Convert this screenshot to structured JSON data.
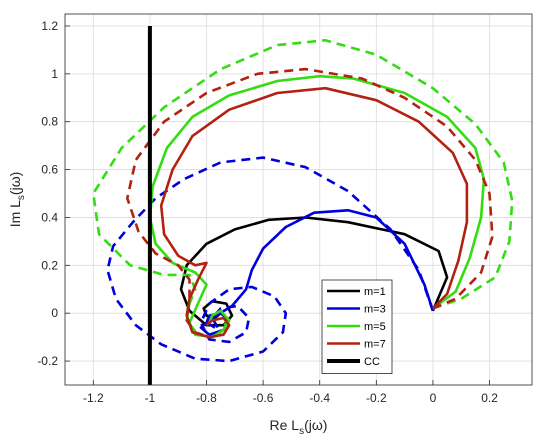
{
  "chart_data": {
    "type": "line",
    "xlabel": "Re L_s(jω)",
    "ylabel": "Im L_s(jω)",
    "xlabel_parts": {
      "prefix": "Re L",
      "sub": "s",
      "suffix": "(jω)"
    },
    "ylabel_parts": {
      "prefix": "Im L",
      "sub": "s",
      "suffix": "(jω)"
    },
    "xlim": [
      -1.3,
      0.35
    ],
    "ylim": [
      -0.3,
      1.25
    ],
    "xticks": [
      -1.2,
      -1,
      -0.8,
      -0.6,
      -0.4,
      -0.2,
      0,
      0.2
    ],
    "xtick_labels": [
      "-1.2",
      "-1",
      "-0.8",
      "-0.6",
      "-0.4",
      "-0.2",
      "0",
      "0.2"
    ],
    "yticks": [
      -0.2,
      0,
      0.2,
      0.4,
      0.6,
      0.8,
      1,
      1.2
    ],
    "ytick_labels": [
      "-0.2",
      "0",
      "0.2",
      "0.4",
      "0.6",
      "0.8",
      "1",
      "1.2"
    ],
    "grid": true,
    "legend_position": "bottom-right",
    "series": [
      {
        "name": "m=1",
        "color": "#000000",
        "solid": [
          [
            0,
            0.01
          ],
          [
            0.05,
            0.15
          ],
          [
            0.02,
            0.26
          ],
          [
            -0.1,
            0.33
          ],
          [
            -0.3,
            0.38
          ],
          [
            -0.45,
            0.4
          ],
          [
            -0.58,
            0.39
          ],
          [
            -0.7,
            0.35
          ],
          [
            -0.8,
            0.29
          ],
          [
            -0.87,
            0.2
          ],
          [
            -0.89,
            0.1
          ],
          [
            -0.86,
            0.01
          ],
          [
            -0.8,
            -0.05
          ],
          [
            -0.74,
            -0.05
          ],
          [
            -0.71,
            -0.01
          ],
          [
            -0.73,
            0.04
          ],
          [
            -0.78,
            0.05
          ],
          [
            -0.81,
            0.02
          ],
          [
            -0.8,
            -0.01
          ],
          [
            -0.77,
            -0.02
          ],
          [
            -0.75,
            0
          ]
        ],
        "dashed": []
      },
      {
        "name": "m=3",
        "color": "#0000dd",
        "solid": [
          [
            0,
            0.01
          ],
          [
            -0.03,
            0.12
          ],
          [
            -0.1,
            0.29
          ],
          [
            -0.2,
            0.4
          ],
          [
            -0.3,
            0.43
          ],
          [
            -0.42,
            0.42
          ],
          [
            -0.52,
            0.36
          ],
          [
            -0.6,
            0.27
          ],
          [
            -0.64,
            0.18
          ],
          [
            -0.66,
            0.1
          ],
          [
            -0.71,
            0.03
          ],
          [
            -0.78,
            -0.02
          ],
          [
            -0.82,
            -0.06
          ],
          [
            -0.79,
            -0.09
          ],
          [
            -0.74,
            -0.07
          ],
          [
            -0.72,
            -0.03
          ],
          [
            -0.75,
            0
          ],
          [
            -0.79,
            -0.01
          ],
          [
            -0.8,
            -0.04
          ],
          [
            -0.77,
            -0.06
          ]
        ],
        "dashed": [
          [
            0,
            0.01
          ],
          [
            -0.05,
            0.18
          ],
          [
            -0.15,
            0.35
          ],
          [
            -0.3,
            0.51
          ],
          [
            -0.45,
            0.61
          ],
          [
            -0.6,
            0.65
          ],
          [
            -0.75,
            0.63
          ],
          [
            -0.88,
            0.56
          ],
          [
            -0.98,
            0.48
          ],
          [
            -1.06,
            0.38
          ],
          [
            -1.13,
            0.28
          ],
          [
            -1.15,
            0.18
          ],
          [
            -1.12,
            0.06
          ],
          [
            -1.05,
            -0.05
          ],
          [
            -0.96,
            -0.13
          ],
          [
            -0.84,
            -0.19
          ],
          [
            -0.72,
            -0.2
          ],
          [
            -0.6,
            -0.16
          ],
          [
            -0.53,
            -0.08
          ],
          [
            -0.52,
            0
          ],
          [
            -0.56,
            0.07
          ],
          [
            -0.64,
            0.11
          ],
          [
            -0.72,
            0.1
          ],
          [
            -0.79,
            0.04
          ],
          [
            -0.82,
            -0.04
          ],
          [
            -0.79,
            -0.11
          ],
          [
            -0.72,
            -0.12
          ],
          [
            -0.66,
            -0.08
          ],
          [
            -0.65,
            -0.02
          ],
          [
            -0.69,
            0.03
          ],
          [
            -0.75,
            0.02
          ],
          [
            -0.78,
            -0.02
          ],
          [
            -0.76,
            -0.06
          ]
        ]
      },
      {
        "name": "m=5",
        "color": "#33dd11",
        "solid": [
          [
            0,
            0.02
          ],
          [
            0.08,
            0.09
          ],
          [
            0.13,
            0.23
          ],
          [
            0.17,
            0.4
          ],
          [
            0.18,
            0.56
          ],
          [
            0.15,
            0.69
          ],
          [
            0.05,
            0.82
          ],
          [
            -0.1,
            0.92
          ],
          [
            -0.28,
            0.98
          ],
          [
            -0.4,
            0.99
          ],
          [
            -0.55,
            0.97
          ],
          [
            -0.72,
            0.91
          ],
          [
            -0.85,
            0.82
          ],
          [
            -0.94,
            0.69
          ],
          [
            -0.99,
            0.53
          ],
          [
            -1.0,
            0.4
          ],
          [
            -0.98,
            0.29
          ],
          [
            -0.92,
            0.21
          ],
          [
            -0.84,
            0.17
          ],
          [
            -0.8,
            0.12
          ],
          [
            -0.83,
            0.04
          ],
          [
            -0.86,
            -0.04
          ],
          [
            -0.84,
            -0.09
          ],
          [
            -0.78,
            -0.1
          ],
          [
            -0.74,
            -0.07
          ],
          [
            -0.72,
            -0.03
          ],
          [
            -0.75,
            0.01
          ],
          [
            -0.78,
            -0.01
          ],
          [
            -0.79,
            -0.04
          ]
        ],
        "dashed": [
          [
            0,
            0.02
          ],
          [
            0.1,
            0.06
          ],
          [
            0.22,
            0.15
          ],
          [
            0.27,
            0.3
          ],
          [
            0.28,
            0.47
          ],
          [
            0.25,
            0.63
          ],
          [
            0.15,
            0.79
          ],
          [
            0.0,
            0.94
          ],
          [
            -0.2,
            1.08
          ],
          [
            -0.38,
            1.14
          ],
          [
            -0.55,
            1.12
          ],
          [
            -0.75,
            1.02
          ],
          [
            -0.95,
            0.86
          ],
          [
            -1.1,
            0.69
          ],
          [
            -1.2,
            0.5
          ],
          [
            -1.18,
            0.33
          ],
          [
            -1.07,
            0.2
          ],
          [
            -0.95,
            0.16
          ],
          [
            -0.86,
            0.16
          ],
          [
            -0.84,
            0.1
          ],
          [
            -0.86,
            0.04
          ],
          [
            -0.87,
            -0.03
          ],
          [
            -0.83,
            -0.09
          ],
          [
            -0.78,
            -0.1
          ],
          [
            -0.75,
            -0.08
          ],
          [
            -0.73,
            -0.04
          ]
        ]
      },
      {
        "name": "m=7",
        "color": "#b22211",
        "solid": [
          [
            0,
            0.02
          ],
          [
            0.05,
            0.08
          ],
          [
            0.09,
            0.22
          ],
          [
            0.12,
            0.38
          ],
          [
            0.12,
            0.54
          ],
          [
            0.07,
            0.67
          ],
          [
            -0.05,
            0.8
          ],
          [
            -0.2,
            0.89
          ],
          [
            -0.38,
            0.94
          ],
          [
            -0.55,
            0.92
          ],
          [
            -0.72,
            0.85
          ],
          [
            -0.85,
            0.74
          ],
          [
            -0.92,
            0.6
          ],
          [
            -0.96,
            0.45
          ],
          [
            -0.95,
            0.33
          ],
          [
            -0.9,
            0.24
          ],
          [
            -0.84,
            0.2
          ],
          [
            -0.8,
            0.21
          ],
          [
            -0.83,
            0.14
          ],
          [
            -0.86,
            0.06
          ],
          [
            -0.87,
            -0.01
          ],
          [
            -0.85,
            -0.08
          ],
          [
            -0.79,
            -0.1
          ],
          [
            -0.74,
            -0.09
          ],
          [
            -0.72,
            -0.05
          ],
          [
            -0.74,
            -0.02
          ],
          [
            -0.78,
            -0.03
          ],
          [
            -0.8,
            -0.05
          ]
        ],
        "dashed": [
          [
            0,
            0.02
          ],
          [
            0.08,
            0.06
          ],
          [
            0.17,
            0.17
          ],
          [
            0.21,
            0.32
          ],
          [
            0.2,
            0.5
          ],
          [
            0.15,
            0.64
          ],
          [
            0.05,
            0.78
          ],
          [
            -0.1,
            0.9
          ],
          [
            -0.25,
            0.98
          ],
          [
            -0.45,
            1.02
          ],
          [
            -0.62,
            1.0
          ],
          [
            -0.8,
            0.92
          ],
          [
            -0.95,
            0.8
          ],
          [
            -1.05,
            0.64
          ],
          [
            -1.08,
            0.48
          ],
          [
            -1.04,
            0.34
          ],
          [
            -0.98,
            0.25
          ],
          [
            -0.9,
            0.2
          ],
          [
            -0.86,
            0.14
          ],
          [
            -0.86,
            0.05
          ],
          [
            -0.87,
            -0.03
          ],
          [
            -0.84,
            -0.08
          ],
          [
            -0.79,
            -0.1
          ],
          [
            -0.74,
            -0.09
          ]
        ]
      },
      {
        "name": "CC",
        "color": "#000000",
        "solid": [
          [
            -1,
            -0.3
          ],
          [
            -1,
            1.2
          ]
        ],
        "dashed": [],
        "thick": true
      }
    ]
  }
}
